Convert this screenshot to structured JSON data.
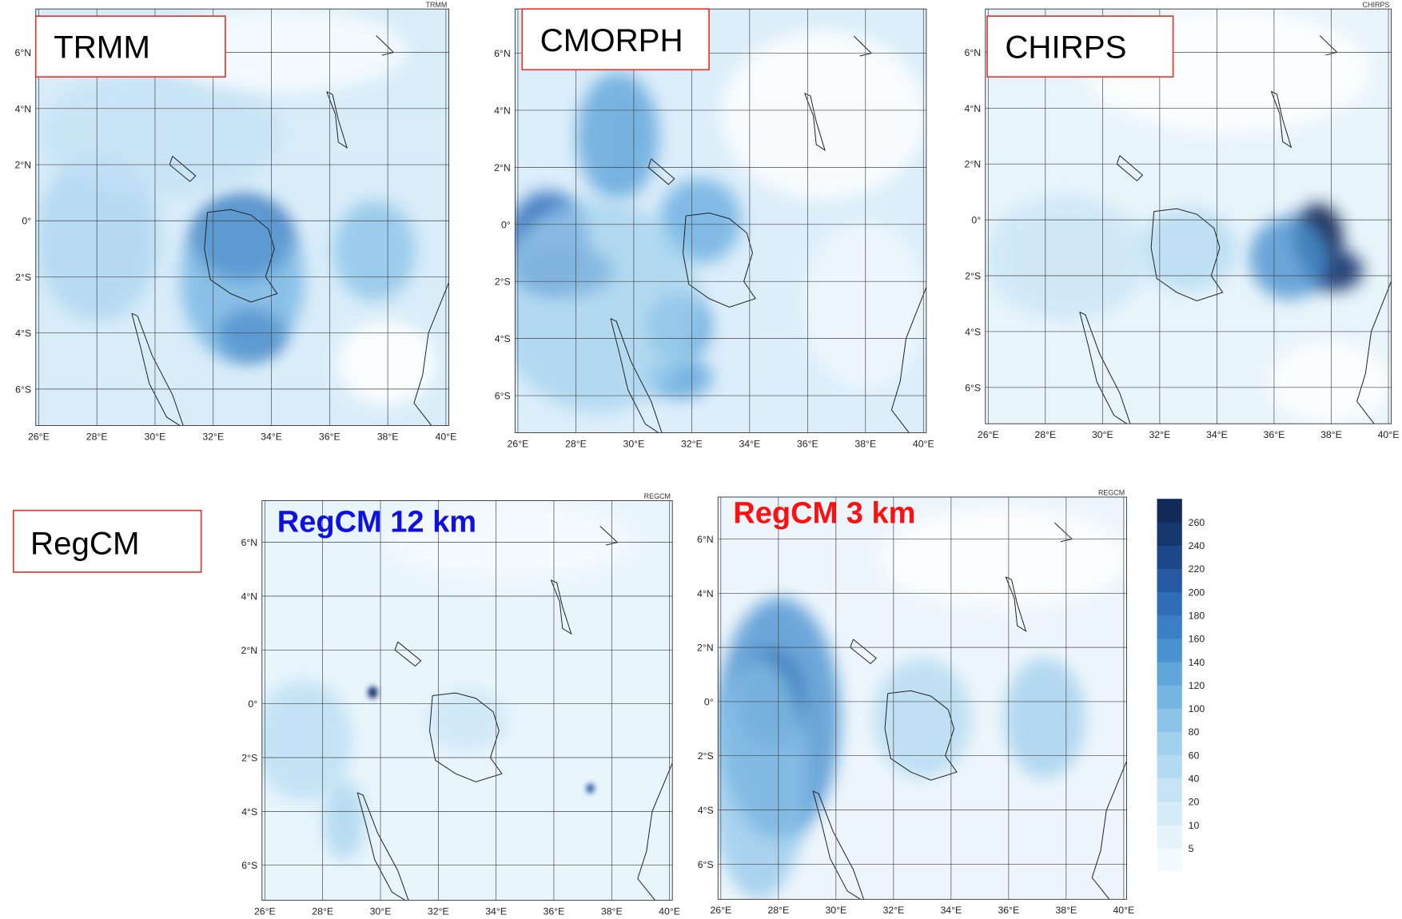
{
  "lon_labels": [
    "26°E",
    "28°E",
    "30°E",
    "32°E",
    "34°E",
    "36°E",
    "38°E",
    "40°E"
  ],
  "lat_labels": [
    "6°N",
    "4°N",
    "2°N",
    "0°",
    "2°S",
    "4°S",
    "6°S"
  ],
  "panels": [
    {
      "label": "TRMM",
      "corner": "TRMM"
    },
    {
      "label": "CMORPH"
    },
    {
      "label": "CHIRPS",
      "corner": "CHIRPS"
    },
    {
      "label": "RegCM 12 km",
      "corner": "REGCM",
      "color": "#1010e0"
    },
    {
      "label": "RegCM 3 km",
      "corner": "REGCM",
      "color": "#ff1010"
    }
  ],
  "group_label": "RegCM",
  "colorbar": {
    "labels": [
      "5",
      "10",
      "20",
      "40",
      "60",
      "80",
      "100",
      "120",
      "140",
      "160",
      "180",
      "200",
      "220",
      "240",
      "260"
    ],
    "colors": [
      "#f4fafe",
      "#e6f3fb",
      "#d6ecf8",
      "#c6e4f5",
      "#b4dbf2",
      "#a2d1ee",
      "#8cc4e9",
      "#74b5e2",
      "#5ea5da",
      "#4b93d0",
      "#3b80c4",
      "#2f6db6",
      "#255aa3",
      "#1c4789",
      "#16366e",
      "#122a58"
    ]
  }
}
